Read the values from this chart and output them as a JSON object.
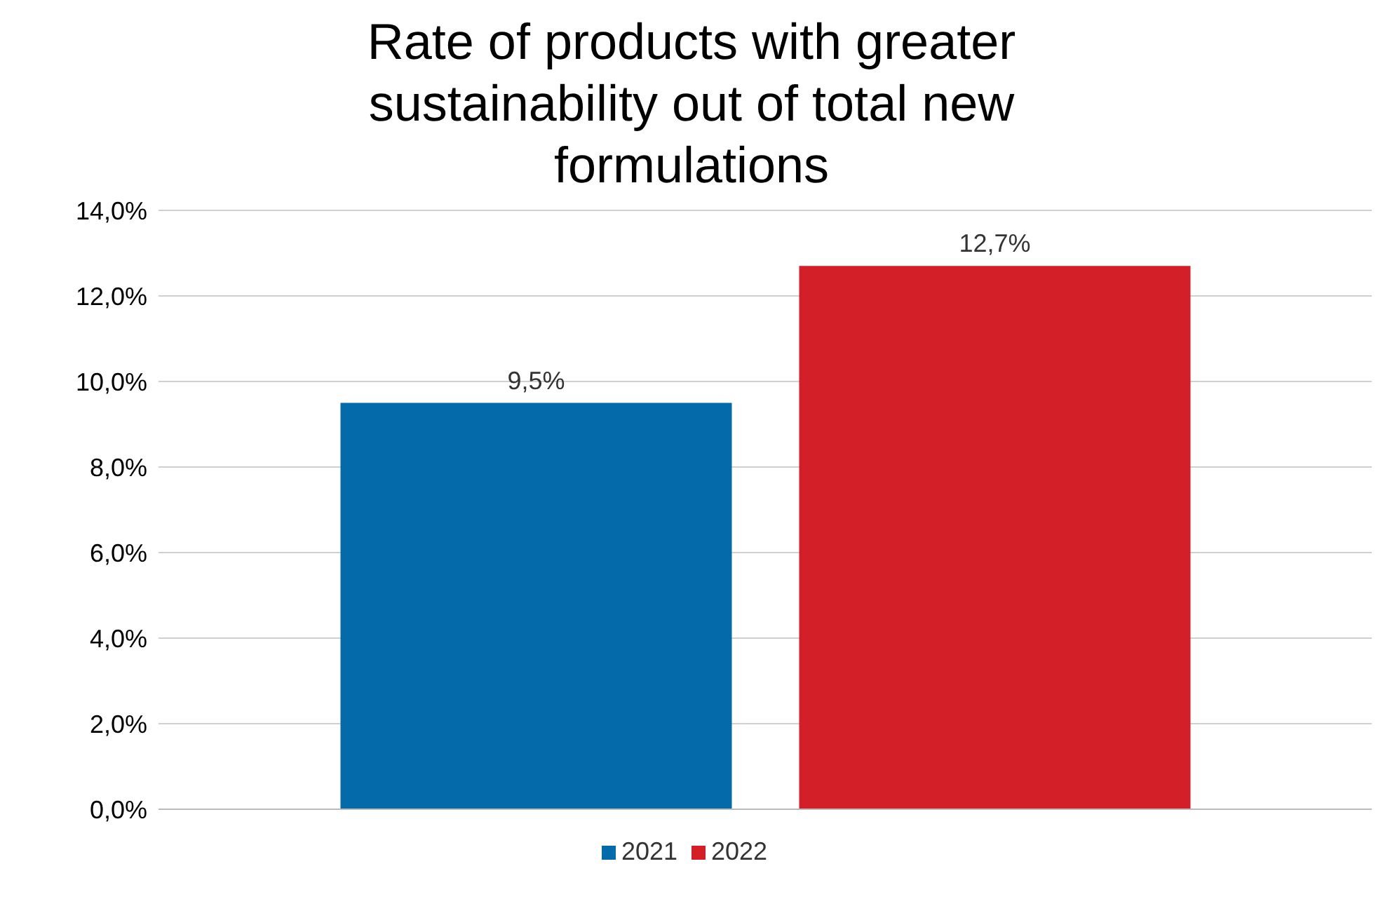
{
  "chart_data": {
    "type": "bar",
    "title": "Rate of products with greater sustainability out of total new formulations",
    "categories": [
      null
    ],
    "series": [
      {
        "name": "2021",
        "color": "#046aaa",
        "values": [
          9.5
        ],
        "value_labels": [
          "9,5%"
        ]
      },
      {
        "name": "2022",
        "color": "#d21f28",
        "values": [
          12.7
        ],
        "value_labels": [
          "12,7%"
        ]
      }
    ],
    "ylim": [
      0,
      14
    ],
    "yticks": [
      {
        "value": 0,
        "label": "0,0%"
      },
      {
        "value": 2,
        "label": "2,0%"
      },
      {
        "value": 4,
        "label": "4,0%"
      },
      {
        "value": 6,
        "label": "6,0%"
      },
      {
        "value": 8,
        "label": "8,0%"
      },
      {
        "value": 10,
        "label": "10,0%"
      },
      {
        "value": 12,
        "label": "12,0%"
      },
      {
        "value": 14,
        "label": "14,0%"
      }
    ],
    "grid": "y",
    "legend": "bottom"
  }
}
